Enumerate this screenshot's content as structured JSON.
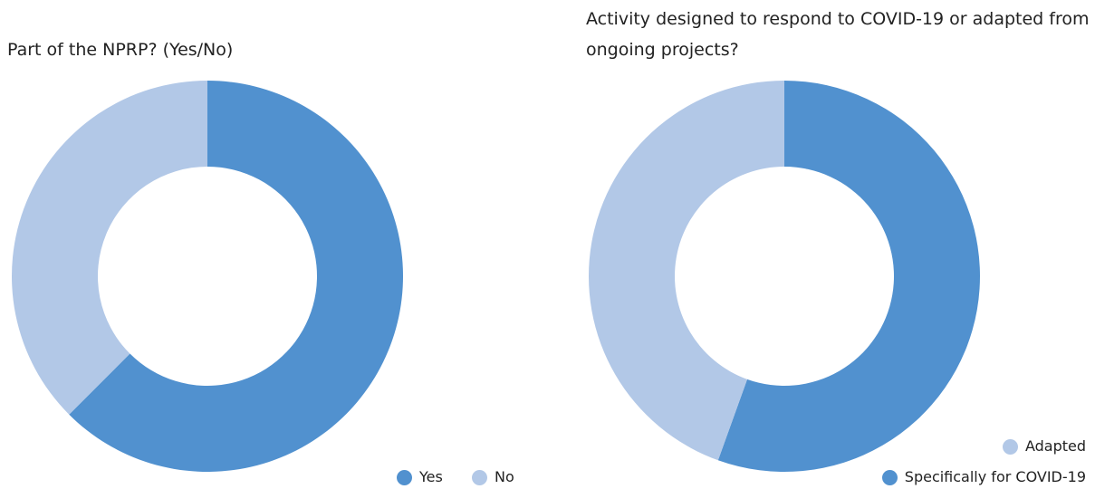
{
  "colors": {
    "dark_blue": "#5191cf",
    "light_blue": "#b2c8e7"
  },
  "chart_data": [
    {
      "type": "pie",
      "donut": true,
      "title": "Part of the NPRP? (Yes/No)",
      "series": [
        {
          "name": "Yes",
          "value": 62.5,
          "color": "#5191cf"
        },
        {
          "name": "No",
          "value": 37.5,
          "color": "#b2c8e7"
        }
      ],
      "legend": {
        "placement": "bottom-right",
        "items": [
          "Yes",
          "No"
        ]
      }
    },
    {
      "type": "pie",
      "donut": true,
      "title": "Activity designed to respond to COVID-19 or adapted from ongoing projects?",
      "series": [
        {
          "name": "Specifically for COVID-19",
          "value": 55.5,
          "color": "#5191cf"
        },
        {
          "name": "Adapted",
          "value": 44.5,
          "color": "#b2c8e7"
        }
      ],
      "legend": {
        "placement": "bottom-right",
        "items": [
          "Adapted",
          "Specifically for COVID-19"
        ]
      }
    }
  ]
}
